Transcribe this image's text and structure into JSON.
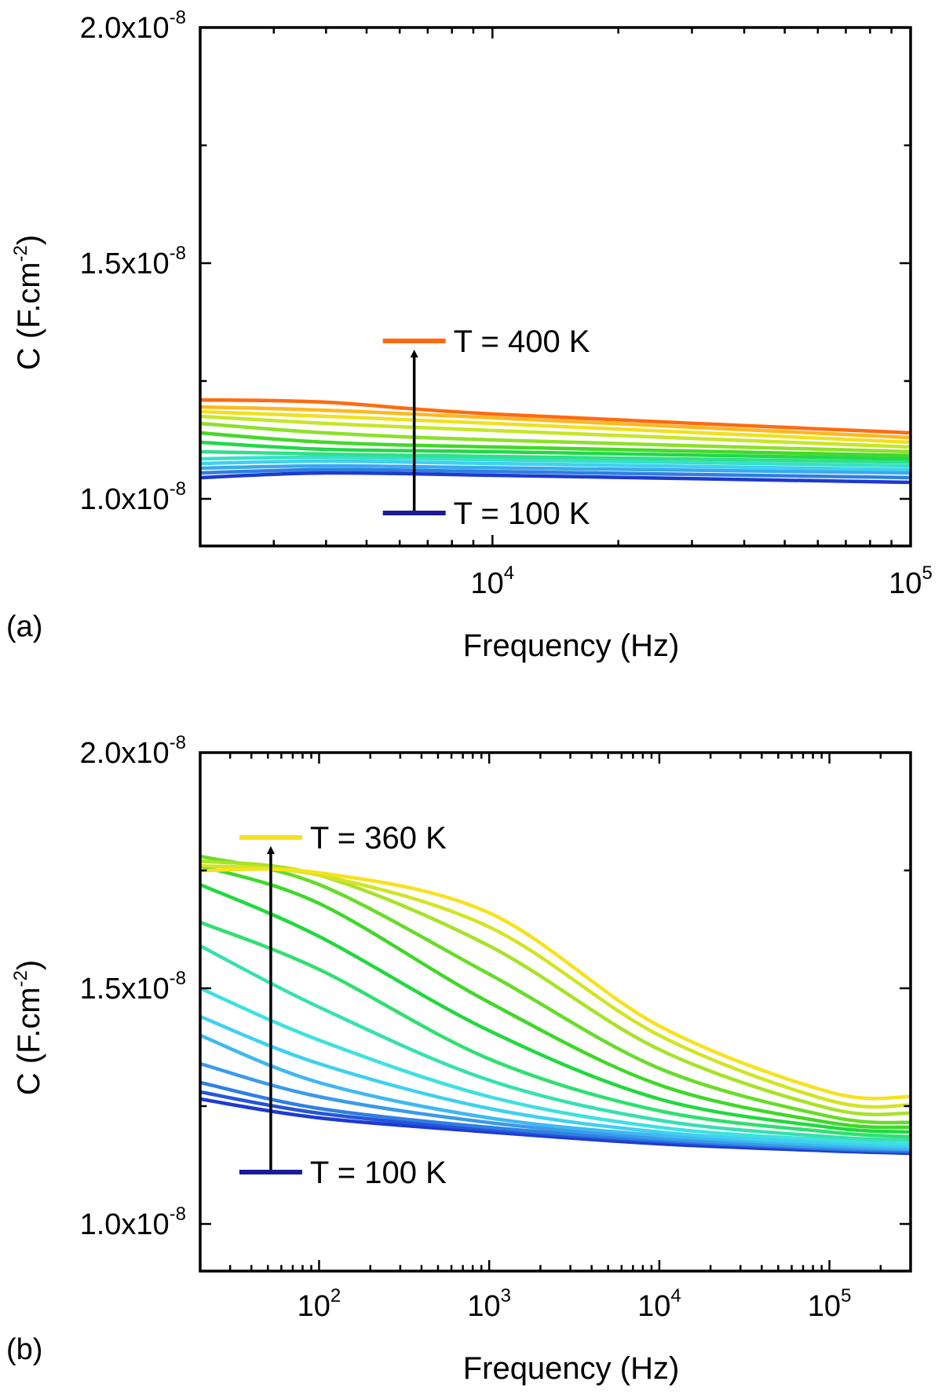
{
  "chart_data": [
    {
      "type": "line",
      "panel_label": "(a)",
      "xlabel": "Frequency (Hz)",
      "ylabel": "C (F.cm",
      "ylabel_sup": "-2",
      "ylabel_close": ")",
      "x_scale": "log",
      "xlim": [
        2000,
        100000
      ],
      "ylim": [
        9e-09,
        2e-08
      ],
      "x_ticks": [
        {
          "base": "10",
          "exp": "4",
          "value": 10000
        },
        {
          "base": "10",
          "exp": "5",
          "value": 100000
        }
      ],
      "y_ticks": [
        {
          "mant": "1.0x10",
          "exp": "-8",
          "value": 1e-08
        },
        {
          "mant": "1.5x10",
          "exp": "-8",
          "value": 1.5e-08
        },
        {
          "mant": "2.0x10",
          "exp": "-8",
          "value": 2e-08
        }
      ],
      "annotations": {
        "high": {
          "text": "T = 400 K",
          "color": "#ff6a10",
          "y": 1.335e-08
        },
        "low": {
          "text": "T = 100 K",
          "color": "#1a1a9c",
          "y": 9.7e-09
        },
        "arrow_x": 6500
      },
      "series": [
        {
          "color": "#1e3ad0",
          "x": [
            2000,
            4000,
            10000,
            100000
          ],
          "y": [
            1.045e-08,
            1.055e-08,
            1.05e-08,
            1.035e-08
          ]
        },
        {
          "color": "#2f7fe0",
          "x": [
            2000,
            4000,
            10000,
            100000
          ],
          "y": [
            1.055e-08,
            1.062e-08,
            1.058e-08,
            1.045e-08
          ]
        },
        {
          "color": "#3aa8ee",
          "x": [
            2000,
            4000,
            10000,
            100000
          ],
          "y": [
            1.065e-08,
            1.07e-08,
            1.066e-08,
            1.055e-08
          ]
        },
        {
          "color": "#3fd0f0",
          "x": [
            2000,
            4000,
            10000,
            100000
          ],
          "y": [
            1.075e-08,
            1.08e-08,
            1.075e-08,
            1.062e-08
          ]
        },
        {
          "color": "#37e0c8",
          "x": [
            2000,
            4000,
            10000,
            100000
          ],
          "y": [
            1.085e-08,
            1.088e-08,
            1.083e-08,
            1.07e-08
          ]
        },
        {
          "color": "#2fe08a",
          "x": [
            2000,
            4000,
            10000,
            100000
          ],
          "y": [
            1.1e-08,
            1.095e-08,
            1.09e-08,
            1.078e-08
          ]
        },
        {
          "color": "#22d84a",
          "x": [
            2000,
            4000,
            10000,
            100000
          ],
          "y": [
            1.12e-08,
            1.105e-08,
            1.1e-08,
            1.085e-08
          ]
        },
        {
          "color": "#44d82a",
          "x": [
            2000,
            4000,
            10000,
            100000
          ],
          "y": [
            1.14e-08,
            1.12e-08,
            1.11e-08,
            1.092e-08
          ]
        },
        {
          "color": "#8ee02a",
          "x": [
            2000,
            4000,
            10000,
            100000
          ],
          "y": [
            1.16e-08,
            1.14e-08,
            1.125e-08,
            1.1e-08
          ]
        },
        {
          "color": "#c6e628",
          "x": [
            2000,
            4000,
            10000,
            100000
          ],
          "y": [
            1.175e-08,
            1.16e-08,
            1.145e-08,
            1.11e-08
          ]
        },
        {
          "color": "#f0e020",
          "x": [
            2000,
            4000,
            10000,
            100000
          ],
          "y": [
            1.185e-08,
            1.175e-08,
            1.16e-08,
            1.12e-08
          ]
        },
        {
          "color": "#ffb820",
          "x": [
            2000,
            4000,
            10000,
            100000
          ],
          "y": [
            1.195e-08,
            1.188e-08,
            1.172e-08,
            1.13e-08
          ]
        },
        {
          "color": "#ff6a10",
          "x": [
            2000,
            4000,
            10000,
            100000
          ],
          "y": [
            1.21e-08,
            1.205e-08,
            1.18e-08,
            1.14e-08
          ]
        }
      ]
    },
    {
      "type": "line",
      "panel_label": "(b)",
      "xlabel": "Frequency (Hz)",
      "ylabel": "C (F.cm",
      "ylabel_sup": "-2",
      "ylabel_close": ")",
      "x_scale": "log",
      "xlim": [
        20,
        300000
      ],
      "ylim": [
        9e-09,
        2e-08
      ],
      "x_ticks": [
        {
          "base": "10",
          "exp": "2",
          "value": 100
        },
        {
          "base": "10",
          "exp": "3",
          "value": 1000
        },
        {
          "base": "10",
          "exp": "4",
          "value": 10000
        },
        {
          "base": "10",
          "exp": "5",
          "value": 100000
        }
      ],
      "y_ticks": [
        {
          "mant": "1.0x10",
          "exp": "-8",
          "value": 1e-08
        },
        {
          "mant": "1.5x10",
          "exp": "-8",
          "value": 1.5e-08
        },
        {
          "mant": "2.0x10",
          "exp": "-8",
          "value": 2e-08
        }
      ],
      "annotations": {
        "high": {
          "text": "T = 360 K",
          "color": "#f6e21e",
          "y": 1.82e-08
        },
        "low": {
          "text": "T = 100 K",
          "color": "#1a1a9c",
          "y": 1.11e-08
        },
        "arrow_x": 52
      },
      "series": [
        {
          "color": "#1e3ad0",
          "x": [
            20,
            100,
            1000,
            10000,
            100000,
            300000
          ],
          "y": [
            1.265e-08,
            1.225e-08,
            1.195e-08,
            1.17e-08,
            1.155e-08,
            1.15e-08
          ]
        },
        {
          "color": "#2555d8",
          "x": [
            20,
            100,
            1000,
            10000,
            100000,
            300000
          ],
          "y": [
            1.28e-08,
            1.235e-08,
            1.2e-08,
            1.175e-08,
            1.158e-08,
            1.153e-08
          ]
        },
        {
          "color": "#2f7fe0",
          "x": [
            20,
            100,
            1000,
            10000,
            100000,
            300000
          ],
          "y": [
            1.3e-08,
            1.245e-08,
            1.205e-08,
            1.178e-08,
            1.16e-08,
            1.155e-08
          ]
        },
        {
          "color": "#3a9aea",
          "x": [
            20,
            100,
            1000,
            10000,
            100000,
            300000
          ],
          "y": [
            1.34e-08,
            1.27e-08,
            1.215e-08,
            1.182e-08,
            1.163e-08,
            1.158e-08
          ]
        },
        {
          "color": "#3fb8f0",
          "x": [
            20,
            100,
            1000,
            10000,
            100000,
            300000
          ],
          "y": [
            1.4e-08,
            1.3e-08,
            1.225e-08,
            1.188e-08,
            1.167e-08,
            1.16e-08
          ]
        },
        {
          "color": "#3fd0f0",
          "x": [
            20,
            100,
            1000,
            10000,
            100000,
            300000
          ],
          "y": [
            1.44e-08,
            1.34e-08,
            1.245e-08,
            1.195e-08,
            1.172e-08,
            1.165e-08
          ]
        },
        {
          "color": "#3fe0e0",
          "x": [
            20,
            100,
            1000,
            10000,
            100000,
            300000
          ],
          "y": [
            1.5e-08,
            1.39e-08,
            1.27e-08,
            1.205e-08,
            1.178e-08,
            1.17e-08
          ]
        },
        {
          "color": "#37e0b0",
          "x": [
            20,
            100,
            1000,
            10000,
            100000,
            300000
          ],
          "y": [
            1.59e-08,
            1.46e-08,
            1.305e-08,
            1.22e-08,
            1.185e-08,
            1.178e-08
          ]
        },
        {
          "color": "#2fe070",
          "x": [
            20,
            100,
            1000,
            10000,
            100000,
            300000
          ],
          "y": [
            1.64e-08,
            1.54e-08,
            1.35e-08,
            1.24e-08,
            1.195e-08,
            1.185e-08
          ]
        },
        {
          "color": "#22d840",
          "x": [
            20,
            100,
            1000,
            10000,
            100000,
            300000
          ],
          "y": [
            1.72e-08,
            1.61e-08,
            1.41e-08,
            1.265e-08,
            1.205e-08,
            1.195e-08
          ]
        },
        {
          "color": "#3fd828",
          "x": [
            20,
            100,
            1000,
            10000,
            100000,
            300000
          ],
          "y": [
            1.76e-08,
            1.68e-08,
            1.47e-08,
            1.295e-08,
            1.215e-08,
            1.205e-08
          ]
        },
        {
          "color": "#68dc28",
          "x": [
            20,
            100,
            1000,
            10000,
            100000,
            300000
          ],
          "y": [
            1.78e-08,
            1.72e-08,
            1.53e-08,
            1.33e-08,
            1.228e-08,
            1.215e-08
          ]
        },
        {
          "color": "#a8e228",
          "x": [
            20,
            100,
            1000,
            10000,
            100000,
            300000
          ],
          "y": [
            1.77e-08,
            1.74e-08,
            1.59e-08,
            1.37e-08,
            1.245e-08,
            1.235e-08
          ]
        },
        {
          "color": "#d2e424",
          "x": [
            20,
            100,
            1000,
            10000,
            100000,
            300000
          ],
          "y": [
            1.76e-08,
            1.74e-08,
            1.63e-08,
            1.4e-08,
            1.262e-08,
            1.252e-08
          ]
        },
        {
          "color": "#f6e21e",
          "x": [
            20,
            100,
            1000,
            10000,
            100000,
            300000
          ],
          "y": [
            1.75e-08,
            1.745e-08,
            1.66e-08,
            1.42e-08,
            1.28e-08,
            1.27e-08
          ]
        }
      ]
    }
  ]
}
